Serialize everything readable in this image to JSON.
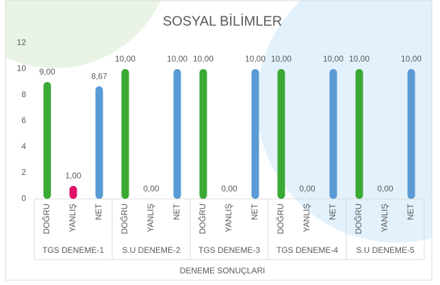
{
  "chart_data": {
    "type": "bar",
    "title": "SOSYAL BİLİMLER",
    "x_label": "DENEME SONUÇLARI",
    "categories": [
      "TGS DENEME-1",
      "S.U DENEME-2",
      "TGS DENEME-3",
      "TGS DENEME-4",
      "S.U DENEME-5"
    ],
    "series": [
      {
        "name": "DOĞRU",
        "color": "#3aaa35",
        "values": [
          9,
          10,
          10,
          10,
          10
        ],
        "value_labels": [
          "9,00",
          "10,00",
          "10,00",
          "10,00",
          "10,00"
        ]
      },
      {
        "name": "YANLIŞ",
        "color": "#e0116b",
        "values": [
          1,
          0,
          0,
          0,
          0
        ],
        "value_labels": [
          "1,00",
          "0,00",
          "0,00",
          "0,00",
          "0,00"
        ]
      },
      {
        "name": "NET",
        "color": "#5b9bd5",
        "values": [
          8.67,
          10,
          10,
          10,
          10
        ],
        "value_labels": [
          "8,67",
          "10,00",
          "10,00",
          "10,00",
          "10,00"
        ]
      }
    ],
    "ylim": [
      0,
      12
    ],
    "yticks": [
      0,
      2,
      4,
      6,
      8,
      10,
      12
    ],
    "grid": false
  }
}
